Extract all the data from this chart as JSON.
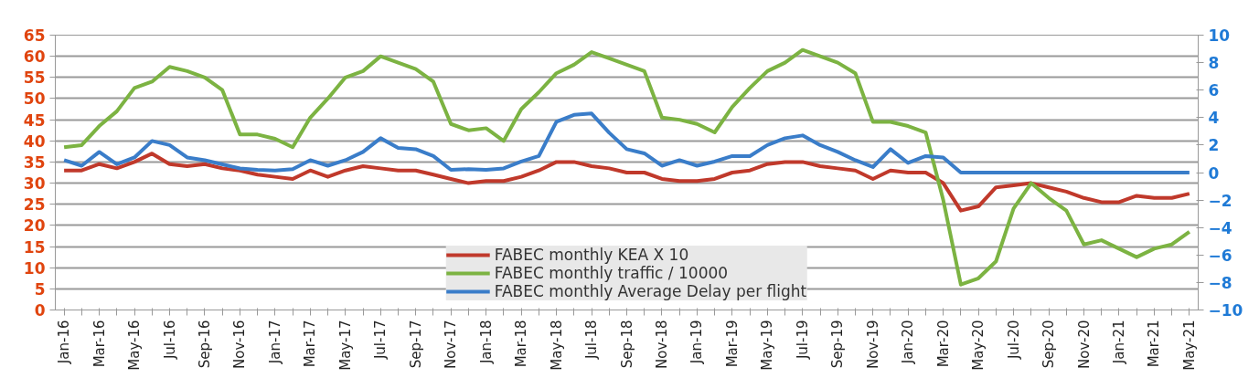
{
  "chart_data": {
    "type": "line",
    "categories": [
      "Jan-16",
      null,
      "Mar-16",
      null,
      "May-16",
      null,
      "Jul-16",
      null,
      "Sep-16",
      null,
      "Nov-16",
      null,
      "Jan-17",
      null,
      "Mar-17",
      null,
      "May-17",
      null,
      "Jul-17",
      null,
      "Sep-17",
      null,
      "Nov-17",
      null,
      "Jan-18",
      null,
      "Mar-18",
      null,
      "May-18",
      null,
      "Jul-18",
      null,
      "Sep-18",
      null,
      "Nov-18",
      null,
      "Jan-19",
      null,
      "Mar-19",
      null,
      "May-19",
      null,
      "Jul-19",
      null,
      "Sep-19",
      null,
      "Nov-19",
      null,
      "Jan-20",
      null,
      "Mar-20",
      null,
      "May-20",
      null,
      "Jul-20",
      null,
      "Sep-20",
      null,
      "Nov-20",
      null,
      "Jan-21",
      null,
      "Mar-21",
      null,
      "May-21"
    ],
    "series": [
      {
        "name": "FABEC monthly KEA X 10",
        "color": "#c0392b",
        "values": [
          33,
          33,
          34.5,
          33.5,
          35,
          37,
          34.5,
          34,
          34.5,
          33.5,
          33,
          32,
          31.5,
          31,
          33,
          31.5,
          33,
          34,
          33.5,
          33,
          33,
          32,
          31,
          30,
          30.5,
          30.5,
          31.5,
          33,
          35,
          35,
          34,
          33.5,
          32.5,
          32.5,
          31,
          30.5,
          30.5,
          31,
          32.5,
          33,
          34.5,
          35,
          35,
          34,
          33.5,
          33,
          31,
          33,
          32.5,
          32.5,
          30,
          23.5,
          24.5,
          29,
          29.5,
          30,
          29,
          28,
          26.5,
          25.5,
          25.5,
          27,
          26.5,
          26.5,
          27.5
        ]
      },
      {
        "name": "FABEC monthly traffic / 10000",
        "color": "#7cb342",
        "values": [
          38.5,
          39,
          43.5,
          47,
          52.5,
          54,
          57.5,
          56.5,
          55,
          52,
          41.5,
          41.5,
          40.5,
          38.5,
          45.5,
          50,
          55,
          56.5,
          60,
          58.5,
          57,
          54,
          44,
          42.5,
          43,
          40,
          47.5,
          51.5,
          56,
          58,
          61,
          59.5,
          58,
          56.5,
          45.5,
          45,
          44,
          42,
          48,
          52.5,
          56.5,
          58.5,
          61.5,
          60,
          58.5,
          56,
          44.5,
          44.5,
          43.5,
          42,
          26,
          6,
          7.5,
          11.5,
          24,
          30,
          26.5,
          23.5,
          15.5,
          16.5,
          14.5,
          12.5,
          14.5,
          15.5,
          18.5
        ]
      },
      {
        "name": "FABEC monthly Average Delay per flight",
        "color": "#3a7dc9",
        "axis": "y2",
        "values": [
          0.9,
          0.5,
          1.5,
          0.6,
          1.1,
          2.3,
          2.0,
          1.1,
          0.9,
          0.6,
          0.3,
          0.2,
          0.15,
          0.25,
          0.9,
          0.5,
          0.9,
          1.5,
          2.5,
          1.8,
          1.7,
          1.2,
          0.2,
          0.25,
          0.2,
          0.3,
          0.8,
          1.2,
          3.7,
          4.2,
          4.3,
          2.9,
          1.7,
          1.4,
          0.5,
          0.9,
          0.5,
          0.8,
          1.2,
          1.2,
          2.0,
          2.5,
          2.7,
          2.0,
          1.5,
          0.9,
          0.4,
          1.7,
          0.7,
          1.2,
          1.1,
          0,
          0,
          0,
          0,
          0,
          0,
          0,
          0,
          0,
          0,
          0,
          0,
          0,
          0
        ]
      }
    ],
    "ylim": [
      0,
      65
    ],
    "yticks": [
      0,
      5,
      10,
      15,
      20,
      25,
      30,
      35,
      40,
      45,
      50,
      55,
      60,
      65
    ],
    "y2lim": [
      -10,
      10
    ],
    "y2ticks": [
      -10,
      -8,
      -6,
      -4,
      -2,
      0,
      2,
      4,
      6,
      8,
      10
    ],
    "grid": "y",
    "legend": "bottom"
  }
}
